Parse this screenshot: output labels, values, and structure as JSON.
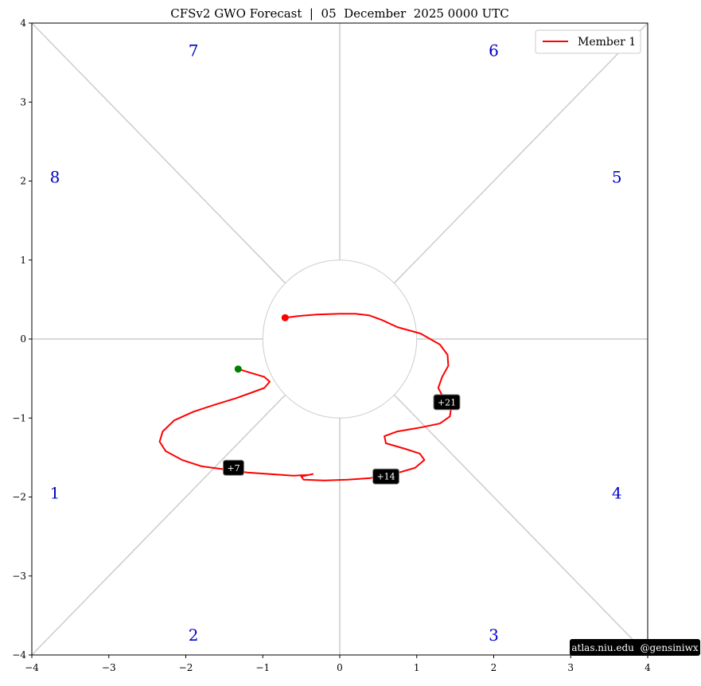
{
  "chart_data": {
    "type": "line",
    "title": "CFSv2 GWO Forecast  |  05  December  2025 0000 UTC",
    "xlim": [
      -4,
      4
    ],
    "ylim": [
      -4,
      4
    ],
    "xticks": [
      -4,
      -3,
      -2,
      -1,
      0,
      1,
      2,
      3,
      4
    ],
    "yticks": [
      -4,
      -3,
      -2,
      -1,
      0,
      1,
      2,
      3,
      4
    ],
    "xtick_labels": [
      "−4",
      "−3",
      "−2",
      "−1",
      "0",
      "1",
      "2",
      "3",
      "4"
    ],
    "ytick_labels": [
      "−4",
      "−3",
      "−2",
      "−1",
      "0",
      "1",
      "2",
      "3",
      "4"
    ],
    "reference_circle_radius": 1,
    "phase_labels": [
      {
        "text": "1",
        "x": -3.7,
        "y": -1.95
      },
      {
        "text": "2",
        "x": -1.9,
        "y": -3.75
      },
      {
        "text": "3",
        "x": 2.0,
        "y": -3.75
      },
      {
        "text": "4",
        "x": 3.6,
        "y": -1.95
      },
      {
        "text": "5",
        "x": 3.6,
        "y": 2.05
      },
      {
        "text": "6",
        "x": 2.0,
        "y": 3.65
      },
      {
        "text": "7",
        "x": -1.9,
        "y": 3.65
      },
      {
        "text": "8",
        "x": -3.7,
        "y": 2.05
      }
    ],
    "legend": {
      "position": "upper-right",
      "entries": [
        "Member 1"
      ]
    },
    "series": [
      {
        "name": "Member 1",
        "color": "#ff0000",
        "points": [
          [
            -1.32,
            -0.38
          ],
          [
            -1.15,
            -0.43
          ],
          [
            -0.98,
            -0.48
          ],
          [
            -0.91,
            -0.54
          ],
          [
            -0.98,
            -0.62
          ],
          [
            -1.15,
            -0.68
          ],
          [
            -1.35,
            -0.75
          ],
          [
            -1.62,
            -0.83
          ],
          [
            -1.9,
            -0.92
          ],
          [
            -2.15,
            -1.03
          ],
          [
            -2.3,
            -1.17
          ],
          [
            -2.34,
            -1.3
          ],
          [
            -2.26,
            -1.42
          ],
          [
            -2.05,
            -1.53
          ],
          [
            -1.8,
            -1.61
          ],
          [
            -1.5,
            -1.65
          ],
          [
            -1.2,
            -1.69
          ],
          [
            -0.9,
            -1.71
          ],
          [
            -0.6,
            -1.73
          ],
          [
            -0.4,
            -1.72
          ],
          [
            -0.35,
            -1.71
          ],
          [
            -0.5,
            -1.74
          ],
          [
            -0.47,
            -1.78
          ],
          [
            -0.2,
            -1.79
          ],
          [
            0.1,
            -1.78
          ],
          [
            0.4,
            -1.76
          ],
          [
            0.7,
            -1.71
          ],
          [
            0.98,
            -1.63
          ],
          [
            1.1,
            -1.53
          ],
          [
            1.04,
            -1.45
          ],
          [
            0.85,
            -1.39
          ],
          [
            0.6,
            -1.32
          ],
          [
            0.58,
            -1.23
          ],
          [
            0.75,
            -1.17
          ],
          [
            1.05,
            -1.12
          ],
          [
            1.3,
            -1.07
          ],
          [
            1.43,
            -0.98
          ],
          [
            1.45,
            -0.85
          ],
          [
            1.35,
            -0.75
          ],
          [
            1.28,
            -0.62
          ],
          [
            1.33,
            -0.48
          ],
          [
            1.41,
            -0.34
          ],
          [
            1.4,
            -0.2
          ],
          [
            1.3,
            -0.07
          ],
          [
            1.05,
            0.07
          ],
          [
            0.75,
            0.15
          ],
          [
            0.55,
            0.24
          ],
          [
            0.38,
            0.3
          ],
          [
            0.2,
            0.32
          ],
          [
            0.0,
            0.32
          ],
          [
            -0.3,
            0.31
          ],
          [
            -0.55,
            0.29
          ],
          [
            -0.71,
            0.27
          ]
        ],
        "start_point": {
          "x": -1.32,
          "y": -0.38,
          "color": "#008000"
        },
        "end_point": {
          "x": -0.71,
          "y": 0.27,
          "color": "#ff0000"
        },
        "annotations": [
          {
            "text": "+7",
            "x": -1.38,
            "y": -1.63
          },
          {
            "text": "+14",
            "x": 0.6,
            "y": -1.74
          },
          {
            "text": "+21",
            "x": 1.39,
            "y": -0.8
          }
        ]
      }
    ]
  },
  "credit": "atlas.niu.edu  @gensiniwx"
}
